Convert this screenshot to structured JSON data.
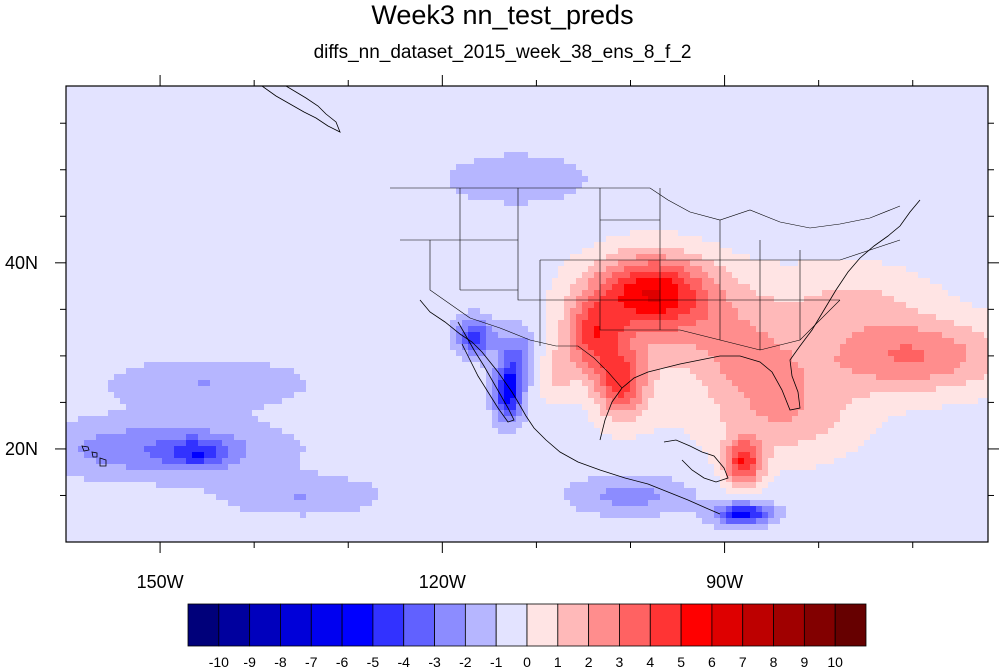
{
  "title": "Week3 nn_test_preds",
  "subtitle": "diffs_nn_dataset_2015_week_38_ens_8_f_2",
  "map": {
    "projection": "cylindrical equidistant",
    "lon_range": [
      -160,
      -62
    ],
    "lat_range": [
      10,
      59
    ],
    "x_tick_labels": [
      {
        "lon": -150,
        "label": "150W"
      },
      {
        "lon": -120,
        "label": "120W"
      },
      {
        "lon": -90,
        "label": "90W"
      }
    ],
    "y_tick_labels": [
      {
        "lat": 20,
        "label": "20N"
      },
      {
        "lat": 40,
        "label": "40N"
      }
    ],
    "base_anomaly": -0.5
  },
  "colorbar": {
    "orientation": "horizontal",
    "placement": "bottom",
    "levels": [
      "-10",
      "-9",
      "-8",
      "-7",
      "-6",
      "-5",
      "-4",
      "-3",
      "-2",
      "-1",
      "0",
      "1",
      "2",
      "3",
      "4",
      "5",
      "6",
      "7",
      "8",
      "9",
      "10"
    ],
    "colors": [
      "#00007a",
      "#00009e",
      "#0000bd",
      "#0000d9",
      "#0000f0",
      "#0000ff",
      "#3232ff",
      "#6161ff",
      "#8c8cff",
      "#b6b6ff",
      "#e3e3ff",
      "#ffe4e4",
      "#ffb9b9",
      "#ff8d8d",
      "#ff6262",
      "#ff3434",
      "#ff0000",
      "#de0000",
      "#bd0000",
      "#a00000",
      "#820000",
      "#660000"
    ]
  },
  "anomaly_features": [
    {
      "lon": -98,
      "lat": 37,
      "rlon": 6,
      "rlat": 4,
      "amp": 5
    },
    {
      "lon": -104,
      "lat": 32,
      "rlon": 3,
      "rlat": 4,
      "amp": 4
    },
    {
      "lon": -101,
      "lat": 27,
      "rlon": 2.5,
      "rlat": 3.5,
      "amp": 4
    },
    {
      "lon": -94,
      "lat": 35,
      "rlon": 10,
      "rlat": 5,
      "amp": 2
    },
    {
      "lon": -88,
      "lat": 18.5,
      "rlon": 2,
      "rlat": 2.5,
      "amp": 5
    },
    {
      "lon": -84,
      "lat": 24,
      "rlon": 8,
      "rlat": 5,
      "amp": 2.5
    },
    {
      "lon": -70,
      "lat": 30,
      "rlon": 10,
      "rlat": 4,
      "amp": 3.5
    },
    {
      "lon": -88,
      "lat": 30,
      "rlon": 6,
      "rlat": 4,
      "amp": 2
    },
    {
      "lon": -76,
      "lat": 36,
      "rlon": 8,
      "rlat": 4,
      "amp": 1.5
    },
    {
      "lon": -108,
      "lat": 28,
      "rlon": 2,
      "rlat": 3,
      "amp": 1.5
    },
    {
      "lon": -113,
      "lat": 26,
      "rlon": 1.5,
      "rlat": 3,
      "amp": -5
    },
    {
      "lon": -116.5,
      "lat": 32,
      "rlon": 2,
      "rlat": 2,
      "amp": -4
    },
    {
      "lon": -112,
      "lat": 30,
      "rlon": 2,
      "rlat": 3,
      "amp": -2.5
    },
    {
      "lon": -88,
      "lat": 13,
      "rlon": 3,
      "rlat": 1.2,
      "amp": -5
    },
    {
      "lon": -100,
      "lat": 15,
      "rlon": 6,
      "rlat": 2,
      "amp": -2
    },
    {
      "lon": -150,
      "lat": 20,
      "rlon": 12,
      "rlat": 3,
      "amp": -2.5
    },
    {
      "lon": -146,
      "lat": 19.5,
      "rlon": 3,
      "rlat": 1.5,
      "amp": -2.5
    },
    {
      "lon": -145,
      "lat": 27,
      "rlon": 10,
      "rlat": 2.5,
      "amp": -1.5
    },
    {
      "lon": -135,
      "lat": 15,
      "rlon": 8,
      "rlat": 2,
      "amp": -1.5
    },
    {
      "lon": -112,
      "lat": 49,
      "rlon": 7,
      "rlat": 2.5,
      "amp": -1.5
    },
    {
      "lon": -100,
      "lat": 28,
      "rlon": 5,
      "rlat": 6,
      "amp": 1
    }
  ]
}
